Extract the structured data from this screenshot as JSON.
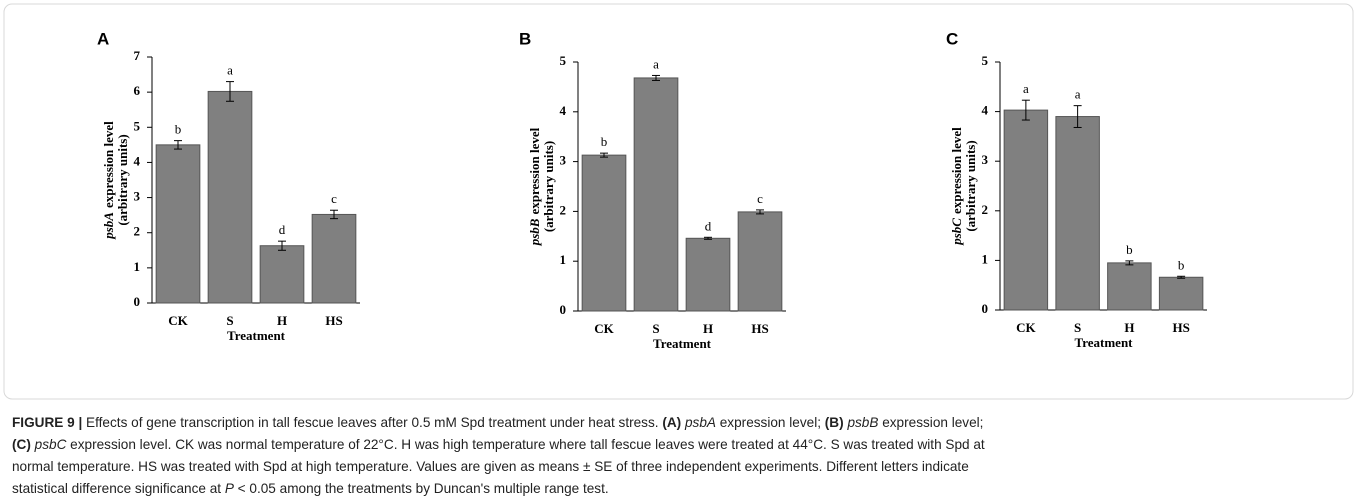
{
  "chart_data": [
    {
      "type": "bar",
      "panel_label": "A",
      "categories": [
        "CK",
        "S",
        "H",
        "HS"
      ],
      "values": [
        4.5,
        6.02,
        1.63,
        2.52
      ],
      "errors": [
        0.12,
        0.28,
        0.13,
        0.12
      ],
      "letters": [
        "b",
        "a",
        "d",
        "c"
      ],
      "color": "#808080",
      "ylim": [
        0,
        7
      ],
      "yticks": [
        0,
        1,
        2,
        3,
        4,
        5,
        6,
        7
      ],
      "xlabel": "Treatment",
      "ylabel": {
        "gene": "psbA",
        "text": "expression level",
        "units": "(arbitrary units)"
      }
    },
    {
      "type": "bar",
      "panel_label": "B",
      "categories": [
        "CK",
        "S",
        "H",
        "HS"
      ],
      "values": [
        3.13,
        4.68,
        1.46,
        1.99
      ],
      "errors": [
        0.04,
        0.05,
        0.02,
        0.04
      ],
      "letters": [
        "b",
        "a",
        "d",
        "c"
      ],
      "color": "#808080",
      "ylim": [
        0,
        5
      ],
      "yticks": [
        0,
        1,
        2,
        3,
        4,
        5
      ],
      "xlabel": "Treatment",
      "ylabel": {
        "gene": "psbB",
        "text": "expression level",
        "units": "(arbitrary units)"
      }
    },
    {
      "type": "bar",
      "panel_label": "C",
      "categories": [
        "CK",
        "S",
        "H",
        "HS"
      ],
      "values": [
        4.03,
        3.9,
        0.95,
        0.66
      ],
      "errors": [
        0.2,
        0.22,
        0.04,
        0.02
      ],
      "letters": [
        "a",
        "a",
        "b",
        "b"
      ],
      "color": "#808080",
      "ylim": [
        0,
        5
      ],
      "yticks": [
        0,
        1,
        2,
        3,
        4,
        5
      ],
      "xlabel": "Treatment",
      "ylabel": {
        "gene": "psbC",
        "text": "expression level",
        "units": "(arbitrary units)"
      }
    }
  ],
  "caption": [
    [
      {
        "style": "b",
        "text": "FIGURE 9 |"
      },
      {
        "text": " Effects of gene transcription in tall fescue leaves after 0.5 mM Spd treatment under heat stress. "
      },
      {
        "style": "b",
        "text": "(A) "
      },
      {
        "style": "i",
        "text": "psbA"
      },
      {
        "text": " expression level; "
      },
      {
        "style": "b",
        "text": "(B) "
      },
      {
        "style": "i",
        "text": "psbB"
      },
      {
        "text": " expression level;"
      }
    ],
    [
      {
        "style": "b",
        "text": "(C) "
      },
      {
        "style": "i",
        "text": "psbC"
      },
      {
        "text": " expression level. CK was normal temperature of 22°C. H was high temperature where tall fescue leaves were treated at 44°C. S was treated with Spd at"
      }
    ],
    [
      {
        "text": "normal temperature. HS was treated with Spd at high temperature. Values are given as means ± SE of three independent experiments. Different letters indicate"
      }
    ],
    [
      {
        "text": "statistical difference significance at "
      },
      {
        "style": "i",
        "text": "P"
      },
      {
        "text": " < 0.05 among the treatments by Duncan's multiple range test."
      }
    ]
  ]
}
